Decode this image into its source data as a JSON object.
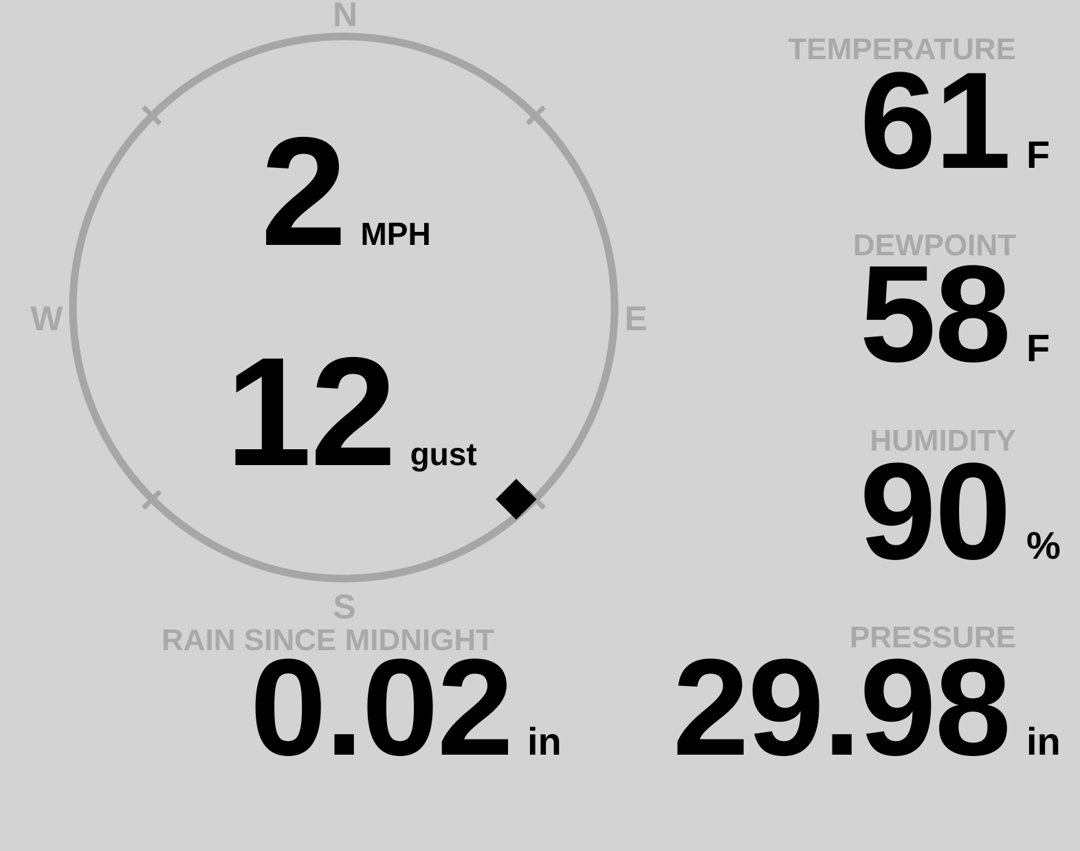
{
  "colors": {
    "background": "#d3d3d3",
    "muted_text": "#a9a9a9",
    "compass_ring": "#a6a6a6",
    "value_text": "#000000"
  },
  "wind": {
    "speed": "2",
    "speed_unit": "MPH",
    "gust": "12",
    "gust_unit": "gust",
    "direction_deg": 138,
    "cardinals": {
      "n": "N",
      "e": "E",
      "s": "S",
      "w": "W"
    }
  },
  "metrics": {
    "temperature": {
      "label": "TEMPERATURE",
      "value": "61",
      "unit": "F"
    },
    "dewpoint": {
      "label": "DEWPOINT",
      "value": "58",
      "unit": "F"
    },
    "humidity": {
      "label": "HUMIDITY",
      "value": "90",
      "unit": "%"
    },
    "rain": {
      "label": "RAIN SINCE MIDNIGHT",
      "value": "0.02",
      "unit": "in"
    },
    "pressure": {
      "label": "PRESSURE",
      "value": "29.98",
      "unit": "in"
    }
  }
}
